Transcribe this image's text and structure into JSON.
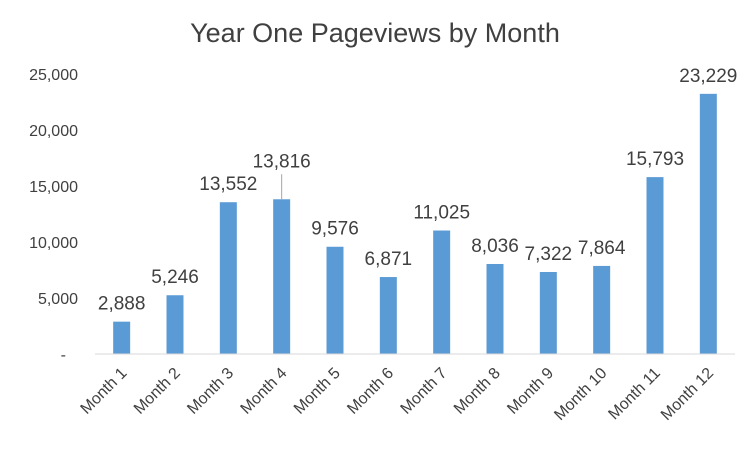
{
  "chart_data": {
    "type": "bar",
    "title": "Year One Pageviews by Month",
    "xlabel": "",
    "ylabel": "",
    "categories": [
      "Month 1",
      "Month 2",
      "Month 3",
      "Month 4",
      "Month 5",
      "Month 6",
      "Month 7",
      "Month 8",
      "Month 9",
      "Month 10",
      "Month 11",
      "Month 12"
    ],
    "values": [
      2888,
      5246,
      13552,
      13816,
      9576,
      6871,
      11025,
      8036,
      7322,
      7864,
      15793,
      23229
    ],
    "data_labels": [
      "2,888",
      "5,246",
      "13,552",
      "13,816",
      "9,576",
      "6,871",
      "11,025",
      "8,036",
      "7,322",
      "7,864",
      "15,793",
      "23,229"
    ],
    "ylim": [
      0,
      25000
    ],
    "yticks": [
      0,
      5000,
      10000,
      15000,
      20000,
      25000
    ],
    "ytick_labels": [
      "-",
      "5,000",
      "10,000",
      "15,000",
      "20,000",
      "25,000"
    ],
    "grid": false,
    "legend": "none",
    "bar_color": "#5b9bd5",
    "axis_color": "#d9d9d9"
  }
}
